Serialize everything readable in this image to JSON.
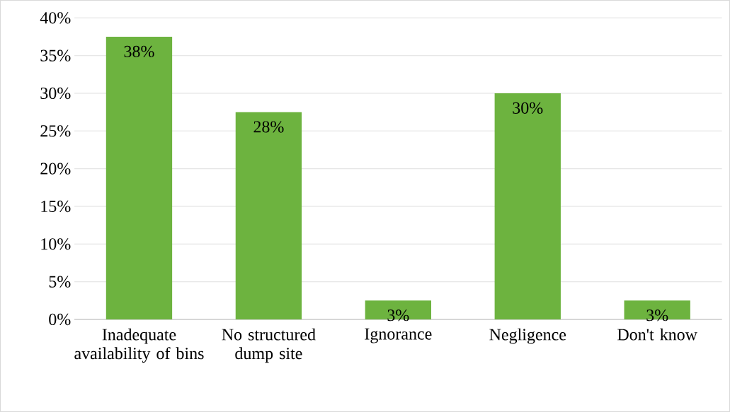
{
  "chart_data": {
    "type": "bar",
    "categories": [
      "Inadequate availability of bins",
      "No structured dump site",
      "Ignorance",
      "Negligence",
      "Don't know"
    ],
    "values": [
      37.5,
      27.5,
      2.5,
      30,
      2.5
    ],
    "value_labels": [
      "38%",
      "28%",
      "3%",
      "30%",
      "3%"
    ],
    "color": "#6db33f",
    "ylim": [
      0,
      40
    ],
    "yticks": [
      {
        "value": 0,
        "label": "0%"
      },
      {
        "value": 5,
        "label": "5%"
      },
      {
        "value": 10,
        "label": "10%"
      },
      {
        "value": 15,
        "label": "15%"
      },
      {
        "value": 20,
        "label": "20%"
      },
      {
        "value": 25,
        "label": "25%"
      },
      {
        "value": 30,
        "label": "30%"
      },
      {
        "value": 35,
        "label": "35%"
      },
      {
        "value": 40,
        "label": "40%"
      }
    ],
    "grid": "y"
  }
}
